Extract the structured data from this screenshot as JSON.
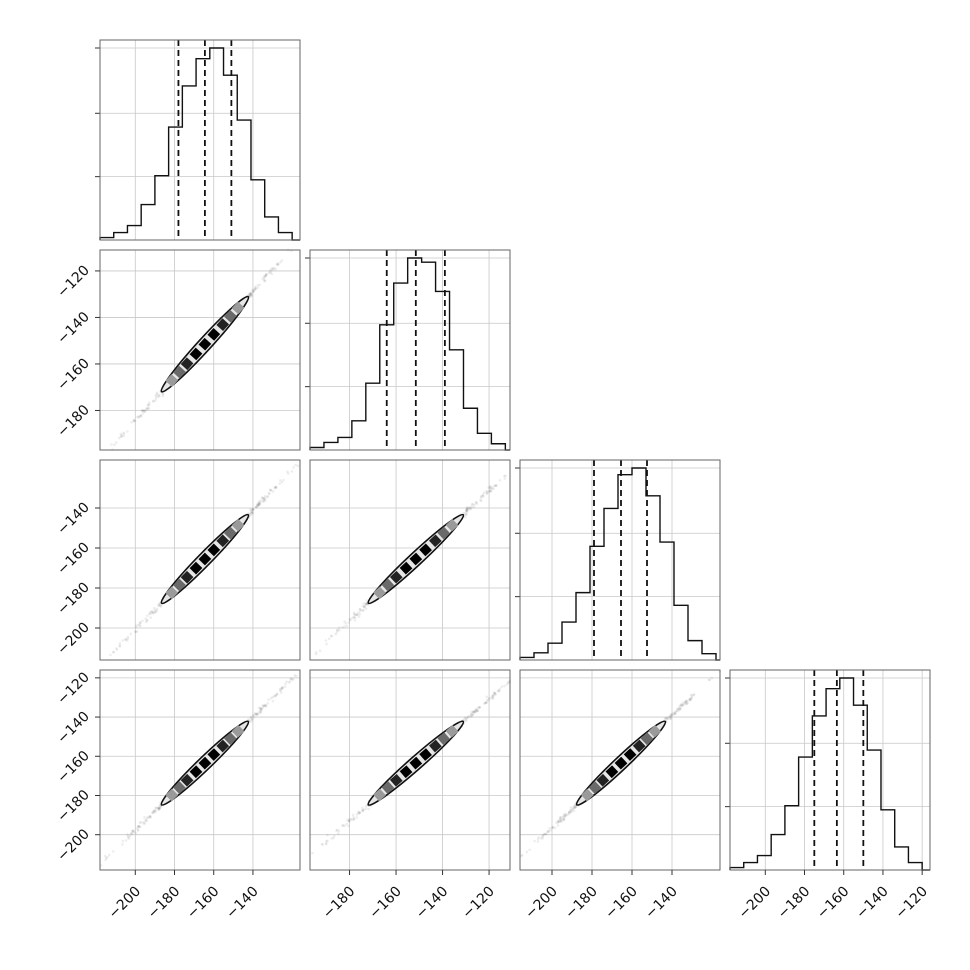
{
  "chart_data": {
    "type": "corner",
    "title": "",
    "parameters": [
      "",
      "",
      "",
      ""
    ],
    "ranges": [
      [
        -218,
        -116
      ],
      [
        -197,
        -111
      ],
      [
        -216,
        -116
      ],
      [
        -218,
        -116
      ]
    ],
    "ticks": [
      [
        -200,
        -180,
        -160,
        -140
      ],
      [
        -180,
        -160,
        -140,
        -120
      ],
      [
        -200,
        -180,
        -160,
        -140
      ],
      [
        -200,
        -180,
        -160,
        -140,
        -120
      ]
    ],
    "histograms": [
      {
        "edges": [
          -218,
          -211,
          -204,
          -197,
          -190,
          -183,
          -176,
          -169,
          -162,
          -155,
          -148,
          -141,
          -134,
          -127,
          -120
        ],
        "counts": [
          0.6,
          1.8,
          3.5,
          8.6,
          15.6,
          27.4,
          37.4,
          44.0,
          46.6,
          40.0,
          29.1,
          14.6,
          5.6,
          1.8
        ],
        "quantiles": [
          -178,
          -164.5,
          -151
        ]
      },
      {
        "edges": [
          -197,
          -191,
          -185,
          -179,
          -173,
          -167,
          -161,
          -155,
          -149,
          -143,
          -137,
          -131,
          -125,
          -119,
          -113
        ],
        "counts": [
          0.6,
          1.8,
          3.0,
          7.0,
          16.0,
          30.0,
          40.0,
          46.0,
          45.0,
          38.0,
          24.0,
          10.0,
          4.0,
          1.5
        ],
        "quantiles": [
          -164,
          -151.5,
          -139
        ]
      },
      {
        "edges": [
          -216,
          -209,
          -202,
          -195,
          -188,
          -181,
          -174,
          -167,
          -160,
          -153,
          -146,
          -139,
          -132,
          -125,
          -118
        ],
        "counts": [
          0.6,
          1.7,
          4.0,
          9.0,
          16.0,
          27.0,
          36.0,
          44.0,
          45.6,
          39.0,
          28.0,
          13.0,
          4.6,
          1.5
        ],
        "quantiles": [
          -179,
          -165.5,
          -152.5
        ]
      },
      {
        "edges": [
          -218,
          -211,
          -204,
          -197,
          -190,
          -183,
          -176,
          -169,
          -162,
          -155,
          -148,
          -141,
          -134,
          -127,
          -120
        ],
        "counts": [
          0.6,
          1.8,
          3.5,
          8.6,
          15.6,
          27.4,
          37.4,
          44.0,
          46.6,
          40.0,
          29.1,
          14.6,
          5.6,
          1.8
        ],
        "quantiles": [
          -175,
          -163.5,
          -150
        ]
      }
    ],
    "means": [
      -164.5,
      -151.5,
      -165.5,
      -163.5
    ],
    "sigmas": [
      13,
      12,
      13,
      12.5
    ],
    "correlation": 0.998,
    "grid": true,
    "legend": "none"
  }
}
